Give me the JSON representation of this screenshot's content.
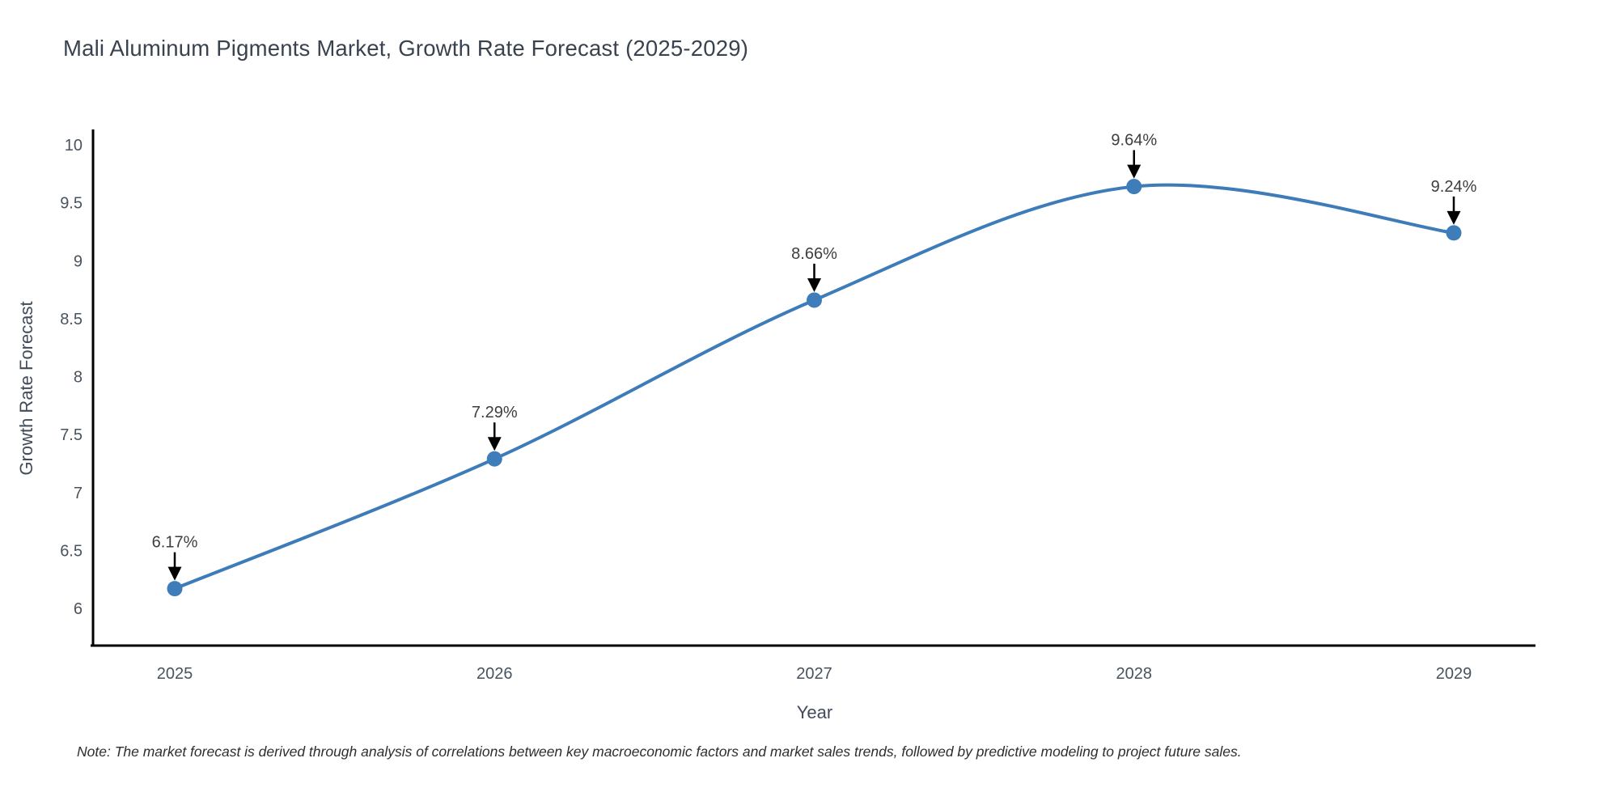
{
  "chart_data": {
    "type": "line",
    "title": "Mali Aluminum Pigments Market, Growth Rate Forecast (2025-2029)",
    "xlabel": "Year",
    "ylabel": "Growth Rate Forecast",
    "categories": [
      "2025",
      "2026",
      "2027",
      "2028",
      "2029"
    ],
    "values": [
      6.17,
      7.29,
      8.66,
      9.64,
      9.24
    ],
    "point_labels": [
      "6.17%",
      "7.29%",
      "8.66%",
      "9.64%",
      "9.24%"
    ],
    "yticks": [
      6,
      6.5,
      7,
      7.5,
      8,
      8.5,
      9,
      9.5,
      10
    ],
    "ylim": [
      5.67,
      10.13
    ],
    "grid": false,
    "legend": "none",
    "colors": {
      "line": "#3d7cb8",
      "marker": "#3e7dba",
      "axis": "#000000",
      "annotation_arrow": "#000000"
    }
  },
  "note": "Note: The market forecast is derived through analysis of correlations between key macroeconomic factors and market sales trends, followed by predictive modeling to project future sales."
}
